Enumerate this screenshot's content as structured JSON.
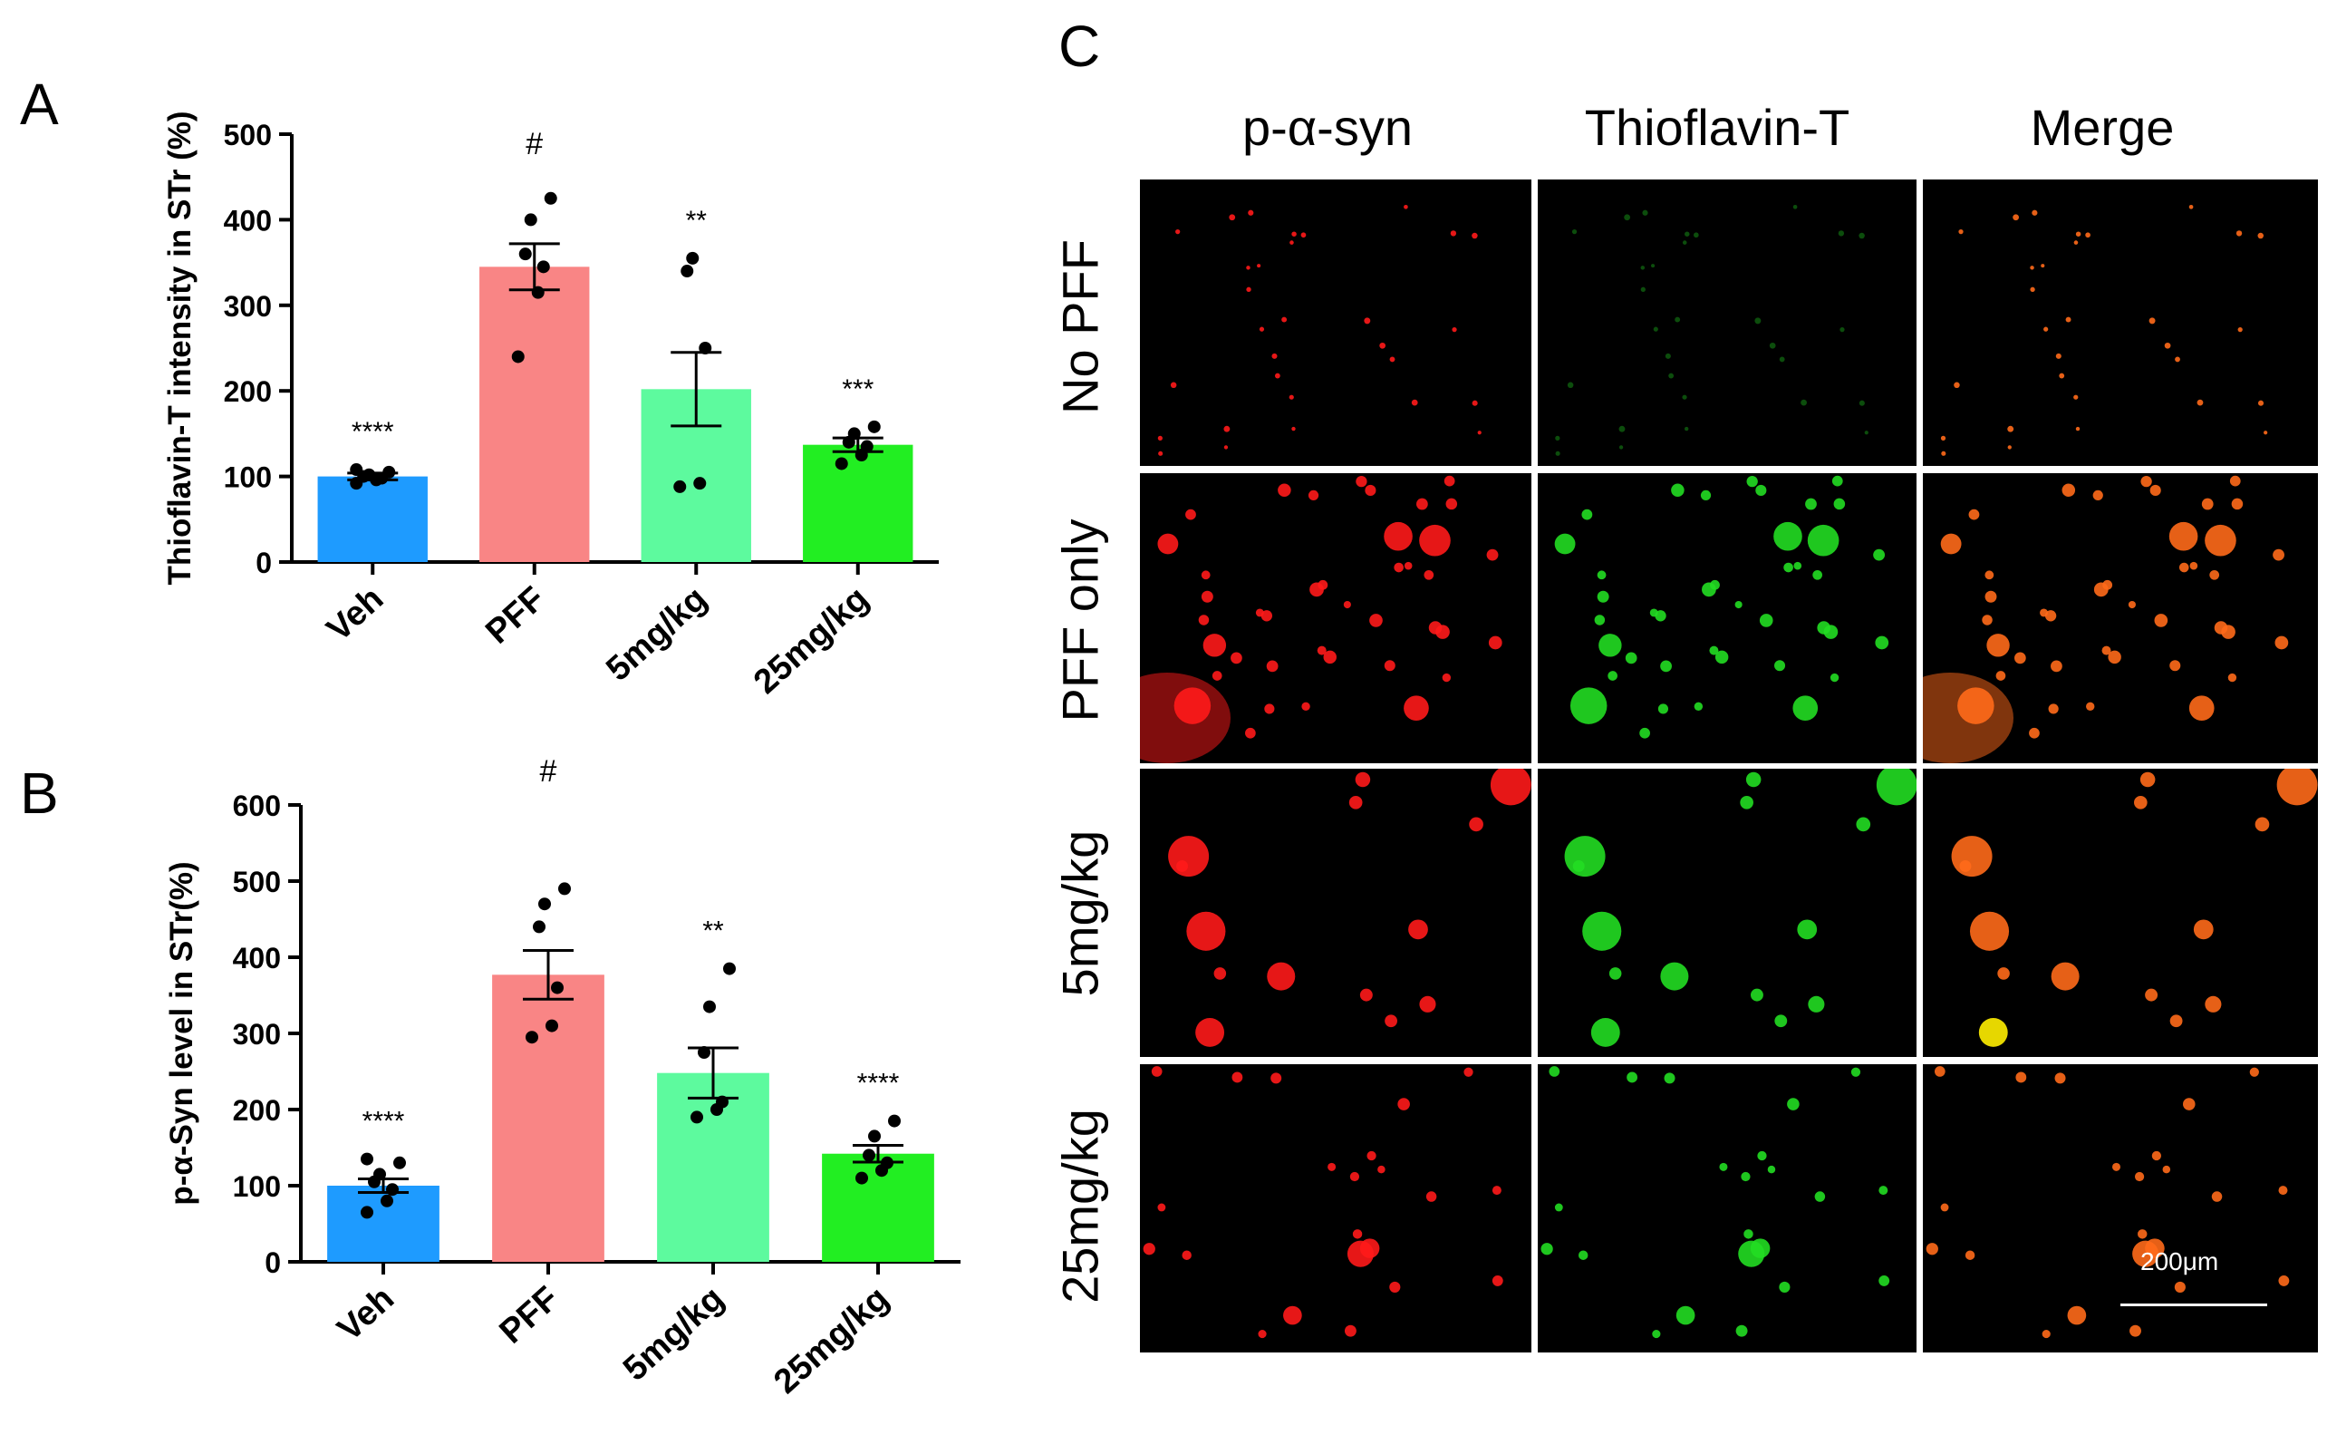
{
  "panels": {
    "a": "A",
    "b": "B",
    "c": "C"
  },
  "chart_data": [
    {
      "type": "bar",
      "panel": "A",
      "ylabel": "Thioflavin-T intensity in STr (%)",
      "ylim": [
        0,
        500
      ],
      "yticks": [
        0,
        100,
        200,
        300,
        400,
        500
      ],
      "categories": [
        "Veh",
        "PFF",
        "5mg/kg",
        "25mg/kg"
      ],
      "values": [
        100,
        345,
        202,
        137
      ],
      "sem": [
        4,
        27,
        43,
        8
      ],
      "colors": [
        "#1e9bff",
        "#f98585",
        "#5dfa9e",
        "#22ee22"
      ],
      "significance": [
        "****",
        "#",
        "**",
        "***"
      ],
      "points": [
        [
          92,
          96,
          98,
          100,
          102,
          105,
          108
        ],
        [
          240,
          315,
          345,
          360,
          400,
          425
        ],
        [
          88,
          92,
          250,
          340,
          355
        ],
        [
          115,
          125,
          135,
          140,
          150,
          158
        ]
      ]
    },
    {
      "type": "bar",
      "panel": "B",
      "ylabel": "p-α-Syn level in STr(%)",
      "ylim": [
        0,
        600
      ],
      "yticks": [
        0,
        100,
        200,
        300,
        400,
        500,
        600
      ],
      "categories": [
        "Veh",
        "PFF",
        "5mg/kg",
        "25mg/kg"
      ],
      "values": [
        100,
        377,
        248,
        142
      ],
      "sem": [
        9,
        32,
        33,
        11
      ],
      "colors": [
        "#1e9bff",
        "#f98585",
        "#5dfa9e",
        "#22ee22"
      ],
      "significance": [
        "****",
        "#",
        "**",
        "****"
      ],
      "points": [
        [
          65,
          80,
          95,
          105,
          115,
          130,
          135
        ],
        [
          295,
          310,
          360,
          440,
          470,
          490
        ],
        [
          190,
          200,
          210,
          275,
          335,
          385
        ],
        [
          110,
          120,
          130,
          140,
          165,
          185
        ]
      ]
    }
  ],
  "microscopy": {
    "columns": [
      "p-α-syn",
      "Thioflavin-T",
      "Merge"
    ],
    "rows": [
      "No PFF",
      "PFF only",
      "5mg/kg",
      "25mg/kg"
    ],
    "scale_bar": "200μm",
    "colors": {
      "red": "#ff1a1a",
      "green": "#22dd22",
      "merge": "#ff6a1a",
      "yellow": "#ffee00"
    }
  }
}
